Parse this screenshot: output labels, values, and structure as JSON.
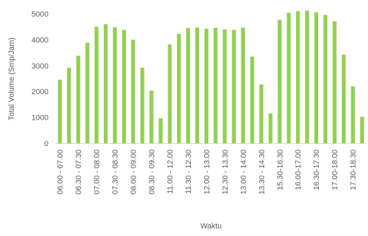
{
  "chart_data": {
    "type": "bar",
    "xlabel": "Waktu",
    "ylabel": "Total Volume (Smp/Jam)",
    "ylim": [
      0,
      5000
    ],
    "yticks": [
      0,
      1000,
      2000,
      3000,
      4000,
      5000
    ],
    "grid": false,
    "legend": "none",
    "bar_color": "#92d050",
    "categories": [
      "06.00 - 07.00",
      "",
      "06.30 - 07.30",
      "",
      "07.00 - 08.00",
      "",
      "07.30 - 08.30",
      "",
      "08.00 - 09.00",
      "",
      "08.30 - 09.30",
      "",
      "11.00 - 12.00",
      "",
      "11.30 - 12.30",
      "",
      "12.00 - 13.00",
      "",
      "12.30 - 13.30",
      "",
      "13.00 - 14.00",
      "",
      "13.30 - 14.30",
      "",
      "15.30-16.30",
      "",
      "16.00-17.00",
      "",
      "16.30-17.30",
      "",
      "17.00-18.00",
      "",
      "17.30-18.30",
      ""
    ],
    "values": [
      2450,
      2920,
      3380,
      3880,
      4500,
      4600,
      4480,
      4380,
      4000,
      2920,
      2030,
      960,
      3820,
      4220,
      4450,
      4470,
      4420,
      4460,
      4400,
      4380,
      4470,
      3350,
      2270,
      1150,
      4770,
      5040,
      5100,
      5130,
      5060,
      4960,
      4710,
      3420,
      2200,
      1020
    ]
  }
}
